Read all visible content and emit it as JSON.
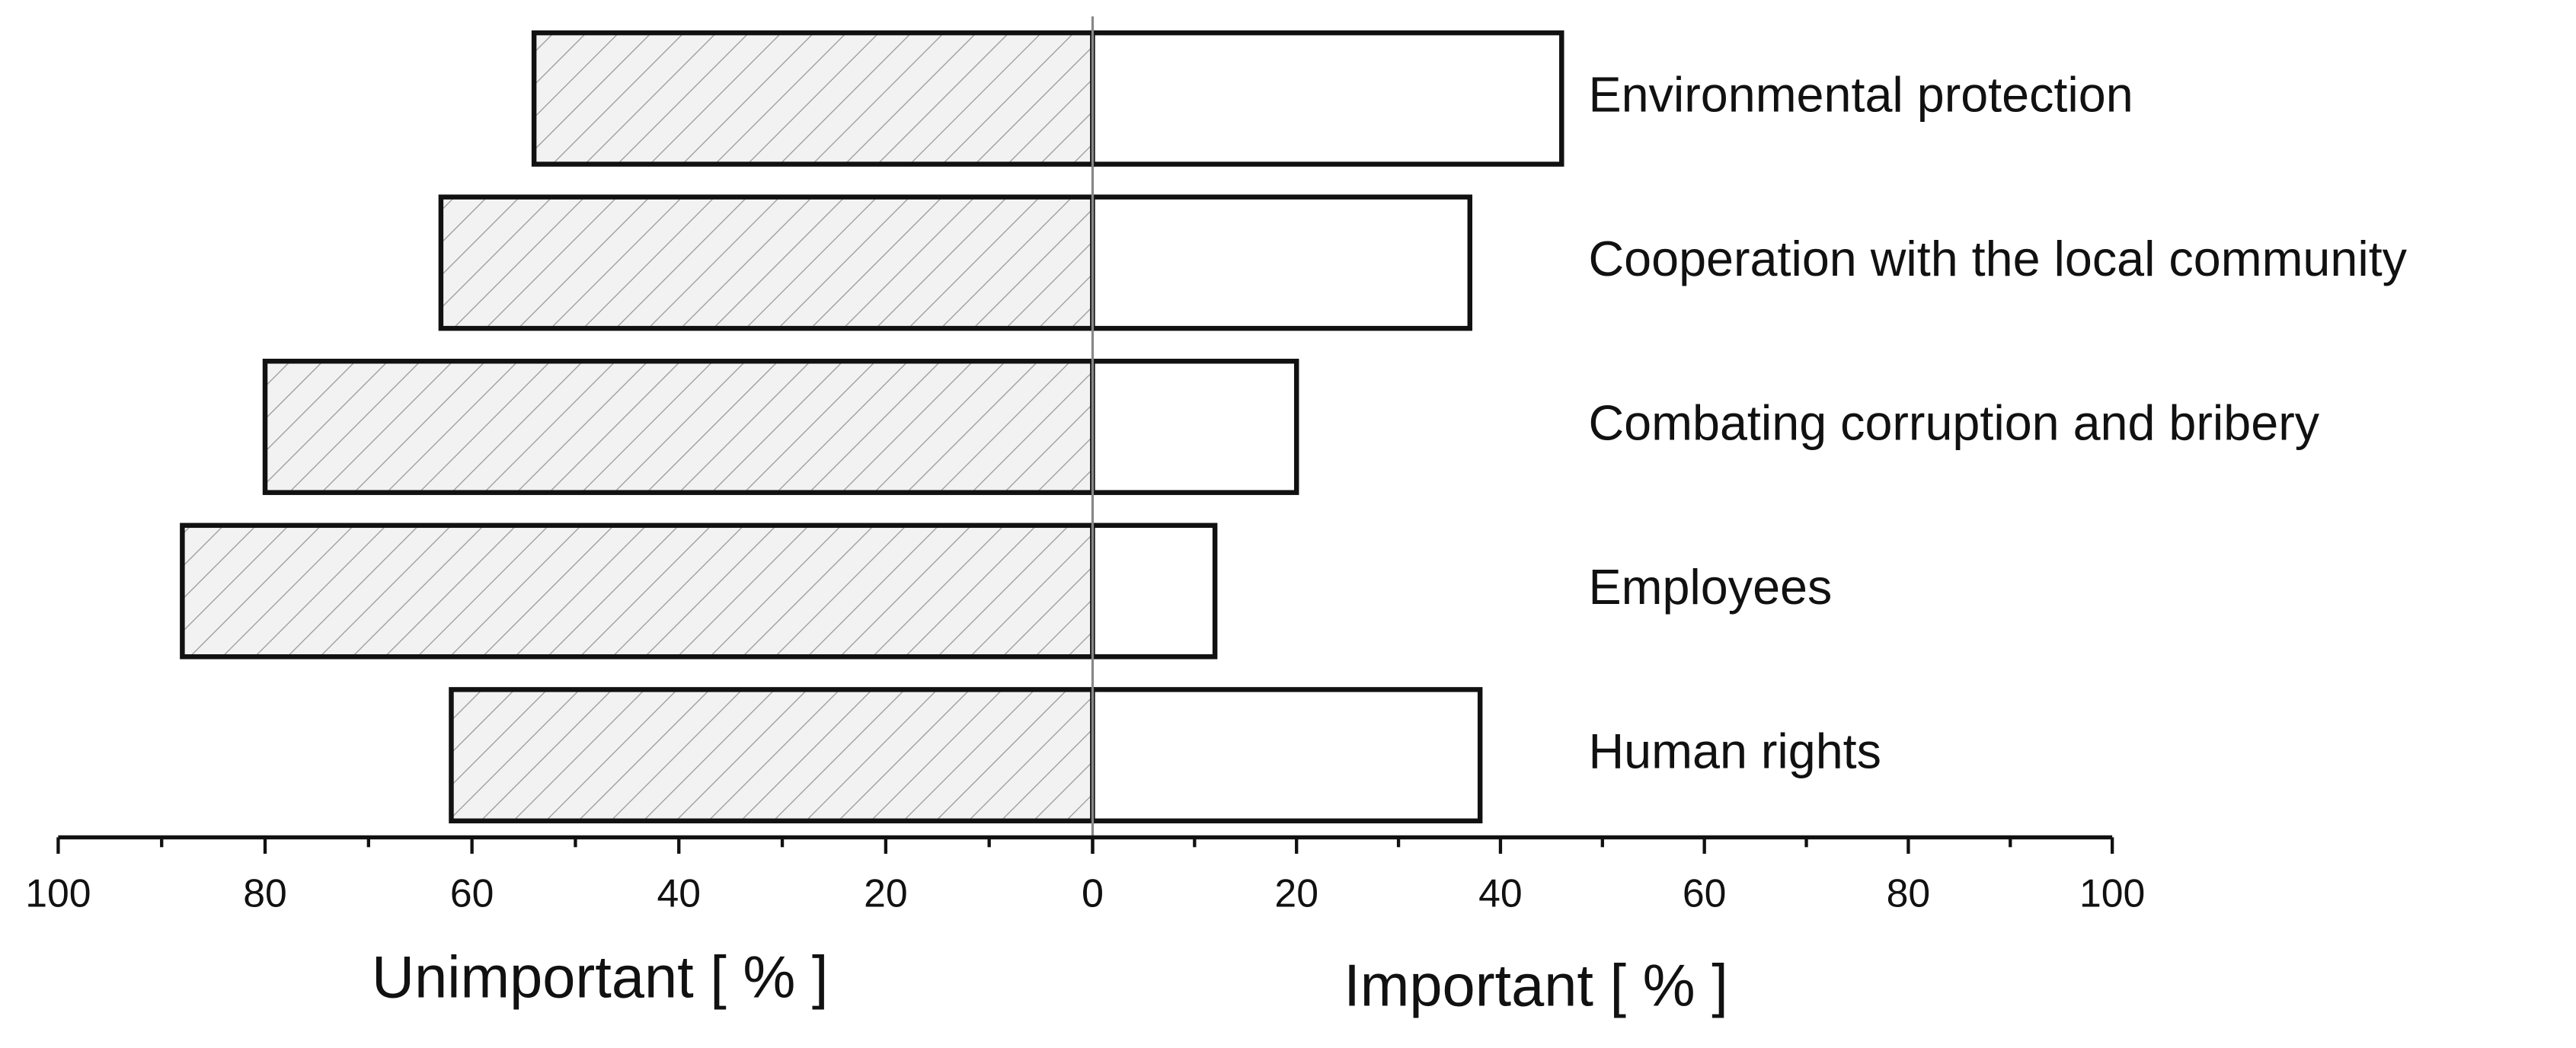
{
  "chart_data": {
    "type": "diverging_bar",
    "categories": [
      "Environmental protection",
      "Cooperation with the local community",
      "Combating corruption and bribery",
      "Employees",
      "Human rights"
    ],
    "series": [
      {
        "side": "left",
        "pattern": "hatch",
        "color": "#9a9a9a",
        "values": [
          54,
          63,
          80,
          88,
          62
        ]
      },
      {
        "side": "right",
        "pattern": "none",
        "color": "#ffffff",
        "values": [
          46,
          37,
          20,
          12,
          38
        ]
      }
    ],
    "x_left": {
      "label": "Unimportant [ % ]",
      "xlim": [
        100,
        0
      ],
      "xticks": [
        100,
        80,
        60,
        40,
        20,
        0
      ],
      "minor_xticks": [
        90,
        70,
        50,
        30,
        10
      ]
    },
    "x_right": {
      "label": "Important [ % ]",
      "xlim": [
        0,
        100
      ],
      "xticks": [
        0,
        20,
        40,
        60,
        80,
        100
      ],
      "minor_xticks": [
        10,
        30,
        50,
        70,
        90
      ]
    }
  }
}
